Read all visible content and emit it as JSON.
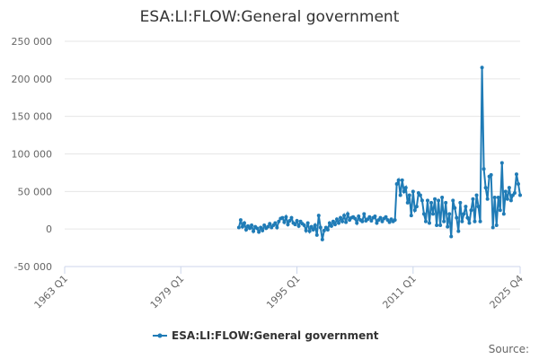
{
  "chart_data": {
    "type": "line",
    "title": "ESA:LI:FLOW:General government",
    "source": "Source:",
    "xlim": [
      1963,
      2025.75
    ],
    "xticks": [
      {
        "value": 1963,
        "label": "1963 Q1"
      },
      {
        "value": 1979,
        "label": "1979 Q1"
      },
      {
        "value": 1995,
        "label": "1995 Q1"
      },
      {
        "value": 2011,
        "label": "2011 Q1"
      },
      {
        "value": 2025.75,
        "label": "2025 Q4"
      }
    ],
    "ylim": [
      -50000,
      250000
    ],
    "yticks": [
      {
        "value": -50000,
        "label": "-50 000"
      },
      0,
      {
        "value": 50000,
        "label": "50 000"
      },
      {
        "value": 100000,
        "label": "100 000"
      },
      {
        "value": 150000,
        "label": "150 000"
      },
      {
        "value": 200000,
        "label": "200 000"
      },
      {
        "value": 250000,
        "label": "250 000"
      }
    ],
    "grid": true,
    "legend": "bottom",
    "x": [
      1987,
      1987.25,
      1987.5,
      1987.75,
      1988,
      1988.25,
      1988.5,
      1988.75,
      1989,
      1989.25,
      1989.5,
      1989.75,
      1990,
      1990.25,
      1990.5,
      1990.75,
      1991,
      1991.25,
      1991.5,
      1991.75,
      1992,
      1992.25,
      1992.5,
      1992.75,
      1993,
      1993.25,
      1993.5,
      1993.75,
      1994,
      1994.25,
      1994.5,
      1994.75,
      1995,
      1995.25,
      1995.5,
      1995.75,
      1996,
      1996.25,
      1996.5,
      1996.75,
      1997,
      1997.25,
      1997.5,
      1997.75,
      1998,
      1998.25,
      1998.5,
      1998.75,
      1999,
      1999.25,
      1999.5,
      1999.75,
      2000,
      2000.25,
      2000.5,
      2000.75,
      2001,
      2001.25,
      2001.5,
      2001.75,
      2002,
      2002.25,
      2002.5,
      2002.75,
      2003,
      2003.25,
      2003.5,
      2003.75,
      2004,
      2004.25,
      2004.5,
      2004.75,
      2005,
      2005.25,
      2005.5,
      2005.75,
      2006,
      2006.25,
      2006.5,
      2006.75,
      2007,
      2007.25,
      2007.5,
      2007.75,
      2008,
      2008.25,
      2008.5,
      2008.75,
      2009,
      2009.25,
      2009.5,
      2009.75,
      2010,
      2010.25,
      2010.5,
      2010.75,
      2011,
      2011.25,
      2011.5,
      2011.75,
      2012,
      2012.25,
      2012.5,
      2012.75,
      2013,
      2013.25,
      2013.5,
      2013.75,
      2014,
      2014.25,
      2014.5,
      2014.75,
      2015,
      2015.25,
      2015.5,
      2015.75,
      2016,
      2016.25,
      2016.5,
      2016.75,
      2017,
      2017.25,
      2017.5,
      2017.75,
      2018,
      2018.25,
      2018.5,
      2018.75,
      2019,
      2019.25,
      2019.5,
      2019.75,
      2020,
      2020.25,
      2020.5,
      2020.75,
      2021,
      2021.25,
      2021.5,
      2021.75,
      2022,
      2022.25,
      2022.5,
      2022.75,
      2023,
      2023.25,
      2023.5,
      2023.75,
      2024,
      2024.25,
      2024.5,
      2024.75,
      2025,
      2025.25,
      2025.5,
      2025.75
    ],
    "series": [
      {
        "name": "ESA:LI:FLOW:General government",
        "color": "#1f7bb6",
        "values": [
          2000,
          12000,
          3000,
          8000,
          -1000,
          4000,
          1000,
          5000,
          -3000,
          3000,
          1000,
          -4000,
          2000,
          -2000,
          5000,
          1000,
          3000,
          7000,
          2000,
          5000,
          8000,
          2000,
          10000,
          14000,
          15000,
          9000,
          16000,
          6000,
          11000,
          15000,
          8000,
          6000,
          11000,
          4000,
          10000,
          7000,
          5000,
          -2000,
          8000,
          -3000,
          3000,
          -1000,
          5000,
          -8000,
          18000,
          2000,
          -14000,
          -2000,
          2000,
          -1000,
          8000,
          4000,
          10000,
          6000,
          13000,
          8000,
          15000,
          10000,
          18000,
          9000,
          20000,
          12000,
          15000,
          16000,
          14000,
          8000,
          17000,
          12000,
          10000,
          20000,
          11000,
          13000,
          16000,
          11000,
          15000,
          17000,
          8000,
          12000,
          15000,
          10000,
          14000,
          16000,
          12000,
          9000,
          13000,
          10000,
          12000,
          60000,
          65000,
          45000,
          65000,
          50000,
          55000,
          35000,
          45000,
          18000,
          50000,
          25000,
          30000,
          48000,
          45000,
          38000,
          20000,
          10000,
          38000,
          8000,
          35000,
          20000,
          40000,
          5000,
          38000,
          5000,
          42000,
          10000,
          35000,
          3000,
          20000,
          -10000,
          38000,
          28000,
          15000,
          -3000,
          35000,
          10000,
          20000,
          30000,
          15000,
          8000,
          25000,
          40000,
          10000,
          45000,
          30000,
          10000,
          215000,
          80000,
          55000,
          40000,
          70000,
          72000,
          2000,
          42000,
          5000,
          42000,
          25000,
          88000,
          20000,
          50000,
          40000,
          55000,
          38000,
          45000,
          48000,
          73000,
          60000,
          45000
        ]
      }
    ]
  }
}
